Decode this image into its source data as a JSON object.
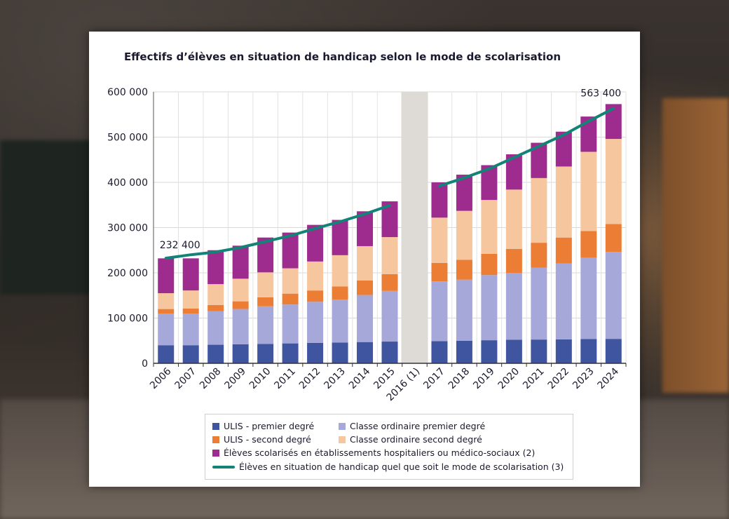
{
  "chart_data": {
    "type": "bar",
    "title": "Effectifs d’élèves en situation de handicap selon le mode de scolarisation",
    "categories": [
      "2006",
      "2007",
      "2008",
      "2009",
      "2010",
      "2011",
      "2012",
      "2013",
      "2014",
      "2015",
      "2016 (1)",
      "2017",
      "2018",
      "2019",
      "2020",
      "2021",
      "2022",
      "2023",
      "2024"
    ],
    "stacked": true,
    "ylim": [
      0,
      600000
    ],
    "yticks": [
      "0",
      "100 000",
      "200 000",
      "300 000",
      "400 000",
      "500 000",
      "600 000"
    ],
    "grid": true,
    "legend_position": "bottom",
    "shaded_category": "2016 (1)",
    "series": [
      {
        "name": "ULIS - premier degré",
        "color": "#3f55a0",
        "values": [
          40000,
          40000,
          41000,
          42000,
          43000,
          44000,
          45000,
          46000,
          47000,
          48000,
          null,
          49000,
          50000,
          51000,
          52000,
          52500,
          53000,
          53500,
          54000
        ]
      },
      {
        "name": "Classe ordinaire premier degré",
        "color": "#a6a8da",
        "values": [
          70000,
          70000,
          74000,
          78000,
          83000,
          86000,
          91000,
          95000,
          104000,
          112000,
          null,
          132000,
          135000,
          144000,
          148000,
          159000,
          168000,
          180000,
          192000
        ]
      },
      {
        "name": "ULIS - second degré",
        "color": "#ec7d35",
        "values": [
          10000,
          11000,
          14000,
          17000,
          20000,
          24000,
          25000,
          29000,
          32000,
          37000,
          null,
          41000,
          44000,
          47000,
          53000,
          55000,
          57000,
          59000,
          62000
        ]
      },
      {
        "name": "Classe ordinaire second degré",
        "color": "#f6c69f",
        "values": [
          35000,
          40000,
          46000,
          50000,
          55000,
          56000,
          64000,
          69000,
          76000,
          82000,
          null,
          100000,
          108000,
          119000,
          131000,
          143000,
          157000,
          175000,
          188000
        ]
      },
      {
        "name": "Élèves scolarisés en établissements hospitaliers ou médico-sociaux (2)",
        "color": "#9e2b8e",
        "values": [
          77000,
          71000,
          75000,
          73000,
          77000,
          79000,
          81000,
          78000,
          77000,
          79000,
          null,
          78000,
          80000,
          77000,
          78000,
          78000,
          77000,
          78000,
          77000
        ]
      }
    ],
    "line": {
      "name": "Élèves en situation de handicap quel que soit le mode de scolarisation (3)",
      "color": "#138378",
      "values": [
        232400,
        240000,
        246000,
        256000,
        269000,
        282000,
        298000,
        313000,
        330000,
        349000,
        null,
        392000,
        410000,
        430000,
        455000,
        480000,
        505000,
        535000,
        563400
      ]
    },
    "annotations": [
      {
        "category": "2006",
        "label": "232 400"
      },
      {
        "category": "2024",
        "label": "563 400"
      }
    ]
  }
}
